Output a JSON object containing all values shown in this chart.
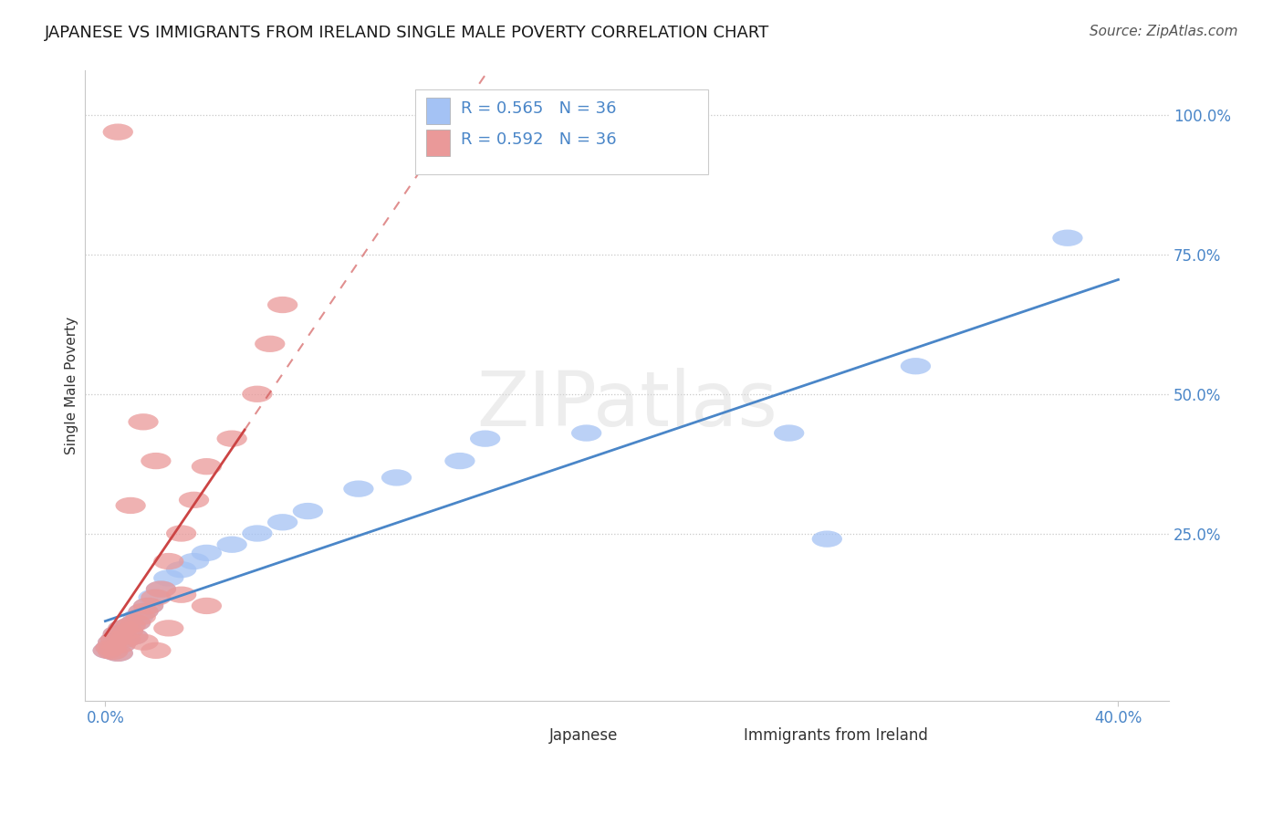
{
  "title": "JAPANESE VS IMMIGRANTS FROM IRELAND SINGLE MALE POVERTY CORRELATION CHART",
  "source": "Source: ZipAtlas.com",
  "ylabel_label": "Single Male Poverty",
  "color_japanese": "#a4c2f4",
  "color_ireland": "#ea9999",
  "color_line_japanese": "#4a86c8",
  "color_line_ireland": "#cc4444",
  "color_text_blue": "#4a86c8",
  "color_text_pink": "#cc4444",
  "legend_r_japanese": "R = 0.565",
  "legend_n_japanese": "N = 36",
  "legend_r_ireland": "R = 0.592",
  "legend_n_ireland": "N = 36",
  "watermark_text": "ZIPatlas",
  "xlim": [
    0.0,
    0.4
  ],
  "ylim": [
    0.0,
    1.05
  ],
  "x_ticks": [
    0.0,
    0.4
  ],
  "x_tick_labels": [
    "0.0%",
    "40.0%"
  ],
  "y_ticks": [
    0.25,
    0.5,
    0.75,
    1.0
  ],
  "y_tick_labels": [
    "25.0%",
    "50.0%",
    "75.0%",
    "100.0%"
  ],
  "japanese_x": [
    0.001,
    0.002,
    0.003,
    0.003,
    0.004,
    0.005,
    0.005,
    0.006,
    0.007,
    0.008,
    0.009,
    0.01,
    0.011,
    0.012,
    0.013,
    0.015,
    0.017,
    0.019,
    0.022,
    0.025,
    0.03,
    0.035,
    0.04,
    0.05,
    0.06,
    0.07,
    0.08,
    0.1,
    0.115,
    0.14,
    0.15,
    0.19,
    0.27,
    0.285,
    0.32,
    0.38
  ],
  "japanese_y": [
    0.04,
    0.045,
    0.038,
    0.055,
    0.06,
    0.035,
    0.07,
    0.05,
    0.08,
    0.06,
    0.075,
    0.085,
    0.065,
    0.09,
    0.1,
    0.11,
    0.12,
    0.135,
    0.15,
    0.17,
    0.185,
    0.2,
    0.215,
    0.23,
    0.25,
    0.27,
    0.29,
    0.33,
    0.35,
    0.38,
    0.42,
    0.43,
    0.43,
    0.24,
    0.55,
    0.78
  ],
  "ireland_x": [
    0.001,
    0.002,
    0.003,
    0.003,
    0.004,
    0.005,
    0.005,
    0.006,
    0.007,
    0.008,
    0.009,
    0.01,
    0.011,
    0.012,
    0.014,
    0.015,
    0.017,
    0.02,
    0.022,
    0.025,
    0.03,
    0.035,
    0.04,
    0.05,
    0.06,
    0.065,
    0.07,
    0.04,
    0.02,
    0.015,
    0.01,
    0.03,
    0.025,
    0.02,
    0.015,
    0.005
  ],
  "ireland_y": [
    0.04,
    0.045,
    0.038,
    0.055,
    0.06,
    0.035,
    0.07,
    0.05,
    0.08,
    0.06,
    0.075,
    0.085,
    0.065,
    0.09,
    0.1,
    0.11,
    0.12,
    0.135,
    0.15,
    0.2,
    0.25,
    0.31,
    0.37,
    0.42,
    0.5,
    0.59,
    0.66,
    0.12,
    0.38,
    0.45,
    0.3,
    0.14,
    0.08,
    0.04,
    0.055,
    0.97
  ]
}
